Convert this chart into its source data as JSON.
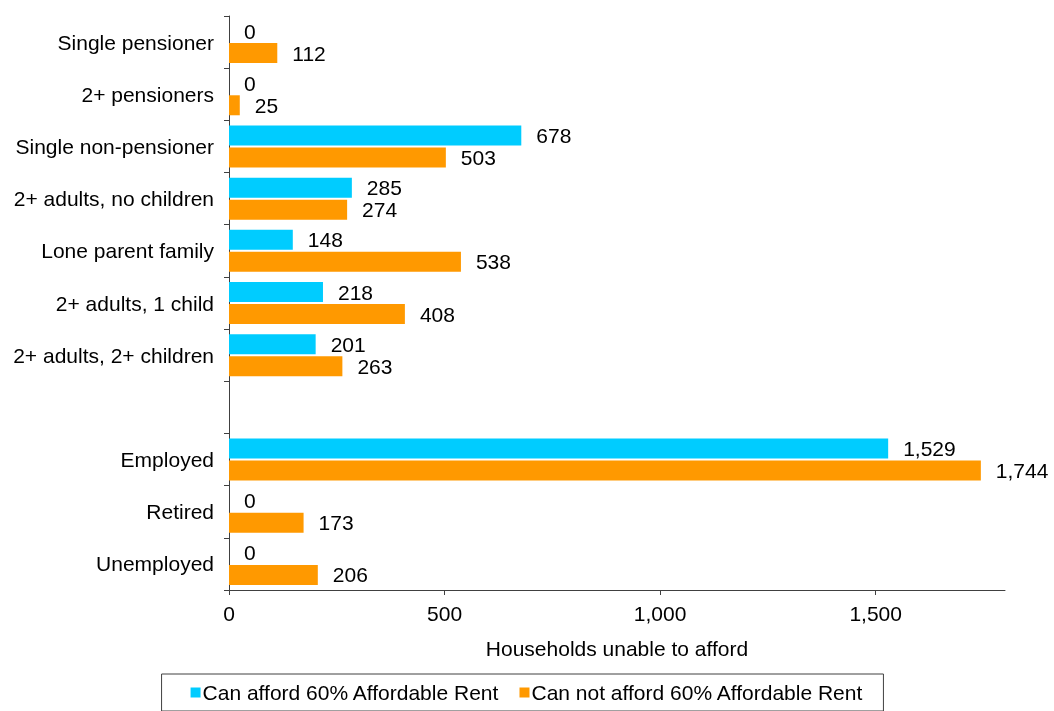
{
  "chart_data": {
    "type": "bar",
    "orientation": "horizontal",
    "xlabel": "Households unable to afford",
    "categories": [
      "Single pensioner",
      "2+ pensioners",
      "Single non-pensioner",
      "2+ adults, no children",
      "Lone parent family",
      "2+ adults, 1 child",
      "2+ adults, 2+ children",
      null,
      "Employed",
      "Retired",
      "Unemployed"
    ],
    "series": [
      {
        "name": "Can afford 60% Affordable Rent",
        "color": "#00ccff",
        "values": [
          0,
          0,
          678,
          285,
          148,
          218,
          201,
          null,
          1529,
          0,
          0
        ],
        "value_labels": [
          "0",
          "0",
          "678",
          "285",
          "148",
          "218",
          "201",
          null,
          "1,529",
          "0",
          "0"
        ]
      },
      {
        "name": "Can not afford 60% Affordable Rent",
        "color": "#ff9900",
        "values": [
          112,
          25,
          503,
          274,
          538,
          408,
          263,
          null,
          1744,
          173,
          206
        ],
        "value_labels": [
          "112",
          "25",
          "503",
          "274",
          "538",
          "408",
          "263",
          null,
          "1,744",
          "173",
          "206"
        ]
      }
    ],
    "xlim": [
      0,
      1800
    ],
    "xticks": [
      0,
      500,
      {
        "value": 1000,
        "label": "1,000"
      },
      {
        "value": 1500,
        "label": "1,500"
      }
    ],
    "grid": false,
    "legend": "bottom"
  }
}
